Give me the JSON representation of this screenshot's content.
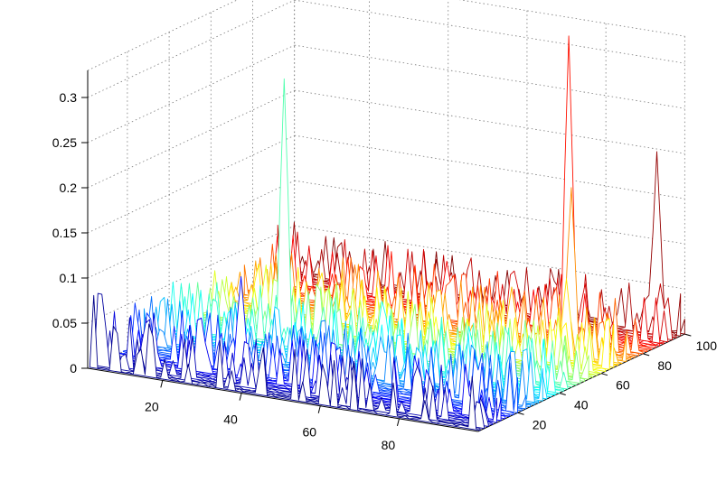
{
  "chart_data": {
    "type": "3d-waterfall",
    "title": "",
    "xlabel": "",
    "ylabel": "",
    "zlabel": "",
    "xlim": [
      1,
      100
    ],
    "ylim": [
      1,
      100
    ],
    "zlim": [
      0,
      0.33
    ],
    "grid": true,
    "colormap": "jet",
    "x_ticks": [
      "20",
      "40",
      "60",
      "80"
    ],
    "y_ticks": [
      "20",
      "40",
      "60",
      "80",
      "100"
    ],
    "z_ticks": [
      "0",
      "0.05",
      "0.1",
      "0.15",
      "0.2",
      "0.25",
      "0.3"
    ],
    "baseline": 0,
    "noise_amplitude": 0.012,
    "notable_peaks": [
      {
        "x": 2,
        "y": 3,
        "z": 0.11
      },
      {
        "x": 3,
        "y": 4,
        "z": 0.08
      },
      {
        "x": 12,
        "y": 8,
        "z": 0.05
      },
      {
        "x": 24,
        "y": 12,
        "z": 0.06
      },
      {
        "x": 33,
        "y": 14,
        "z": 0.11
      },
      {
        "x": 27,
        "y": 46,
        "z": 0.29
      },
      {
        "x": 55,
        "y": 40,
        "z": 0.07
      },
      {
        "x": 72,
        "y": 70,
        "z": 0.065
      },
      {
        "x": 78,
        "y": 86,
        "z": 0.33
      },
      {
        "x": 85,
        "y": 74,
        "z": 0.18
      },
      {
        "x": 94,
        "y": 98,
        "z": 0.2
      },
      {
        "x": 88,
        "y": 66,
        "z": 0.09
      },
      {
        "x": 97,
        "y": 94,
        "z": 0.06
      }
    ]
  }
}
